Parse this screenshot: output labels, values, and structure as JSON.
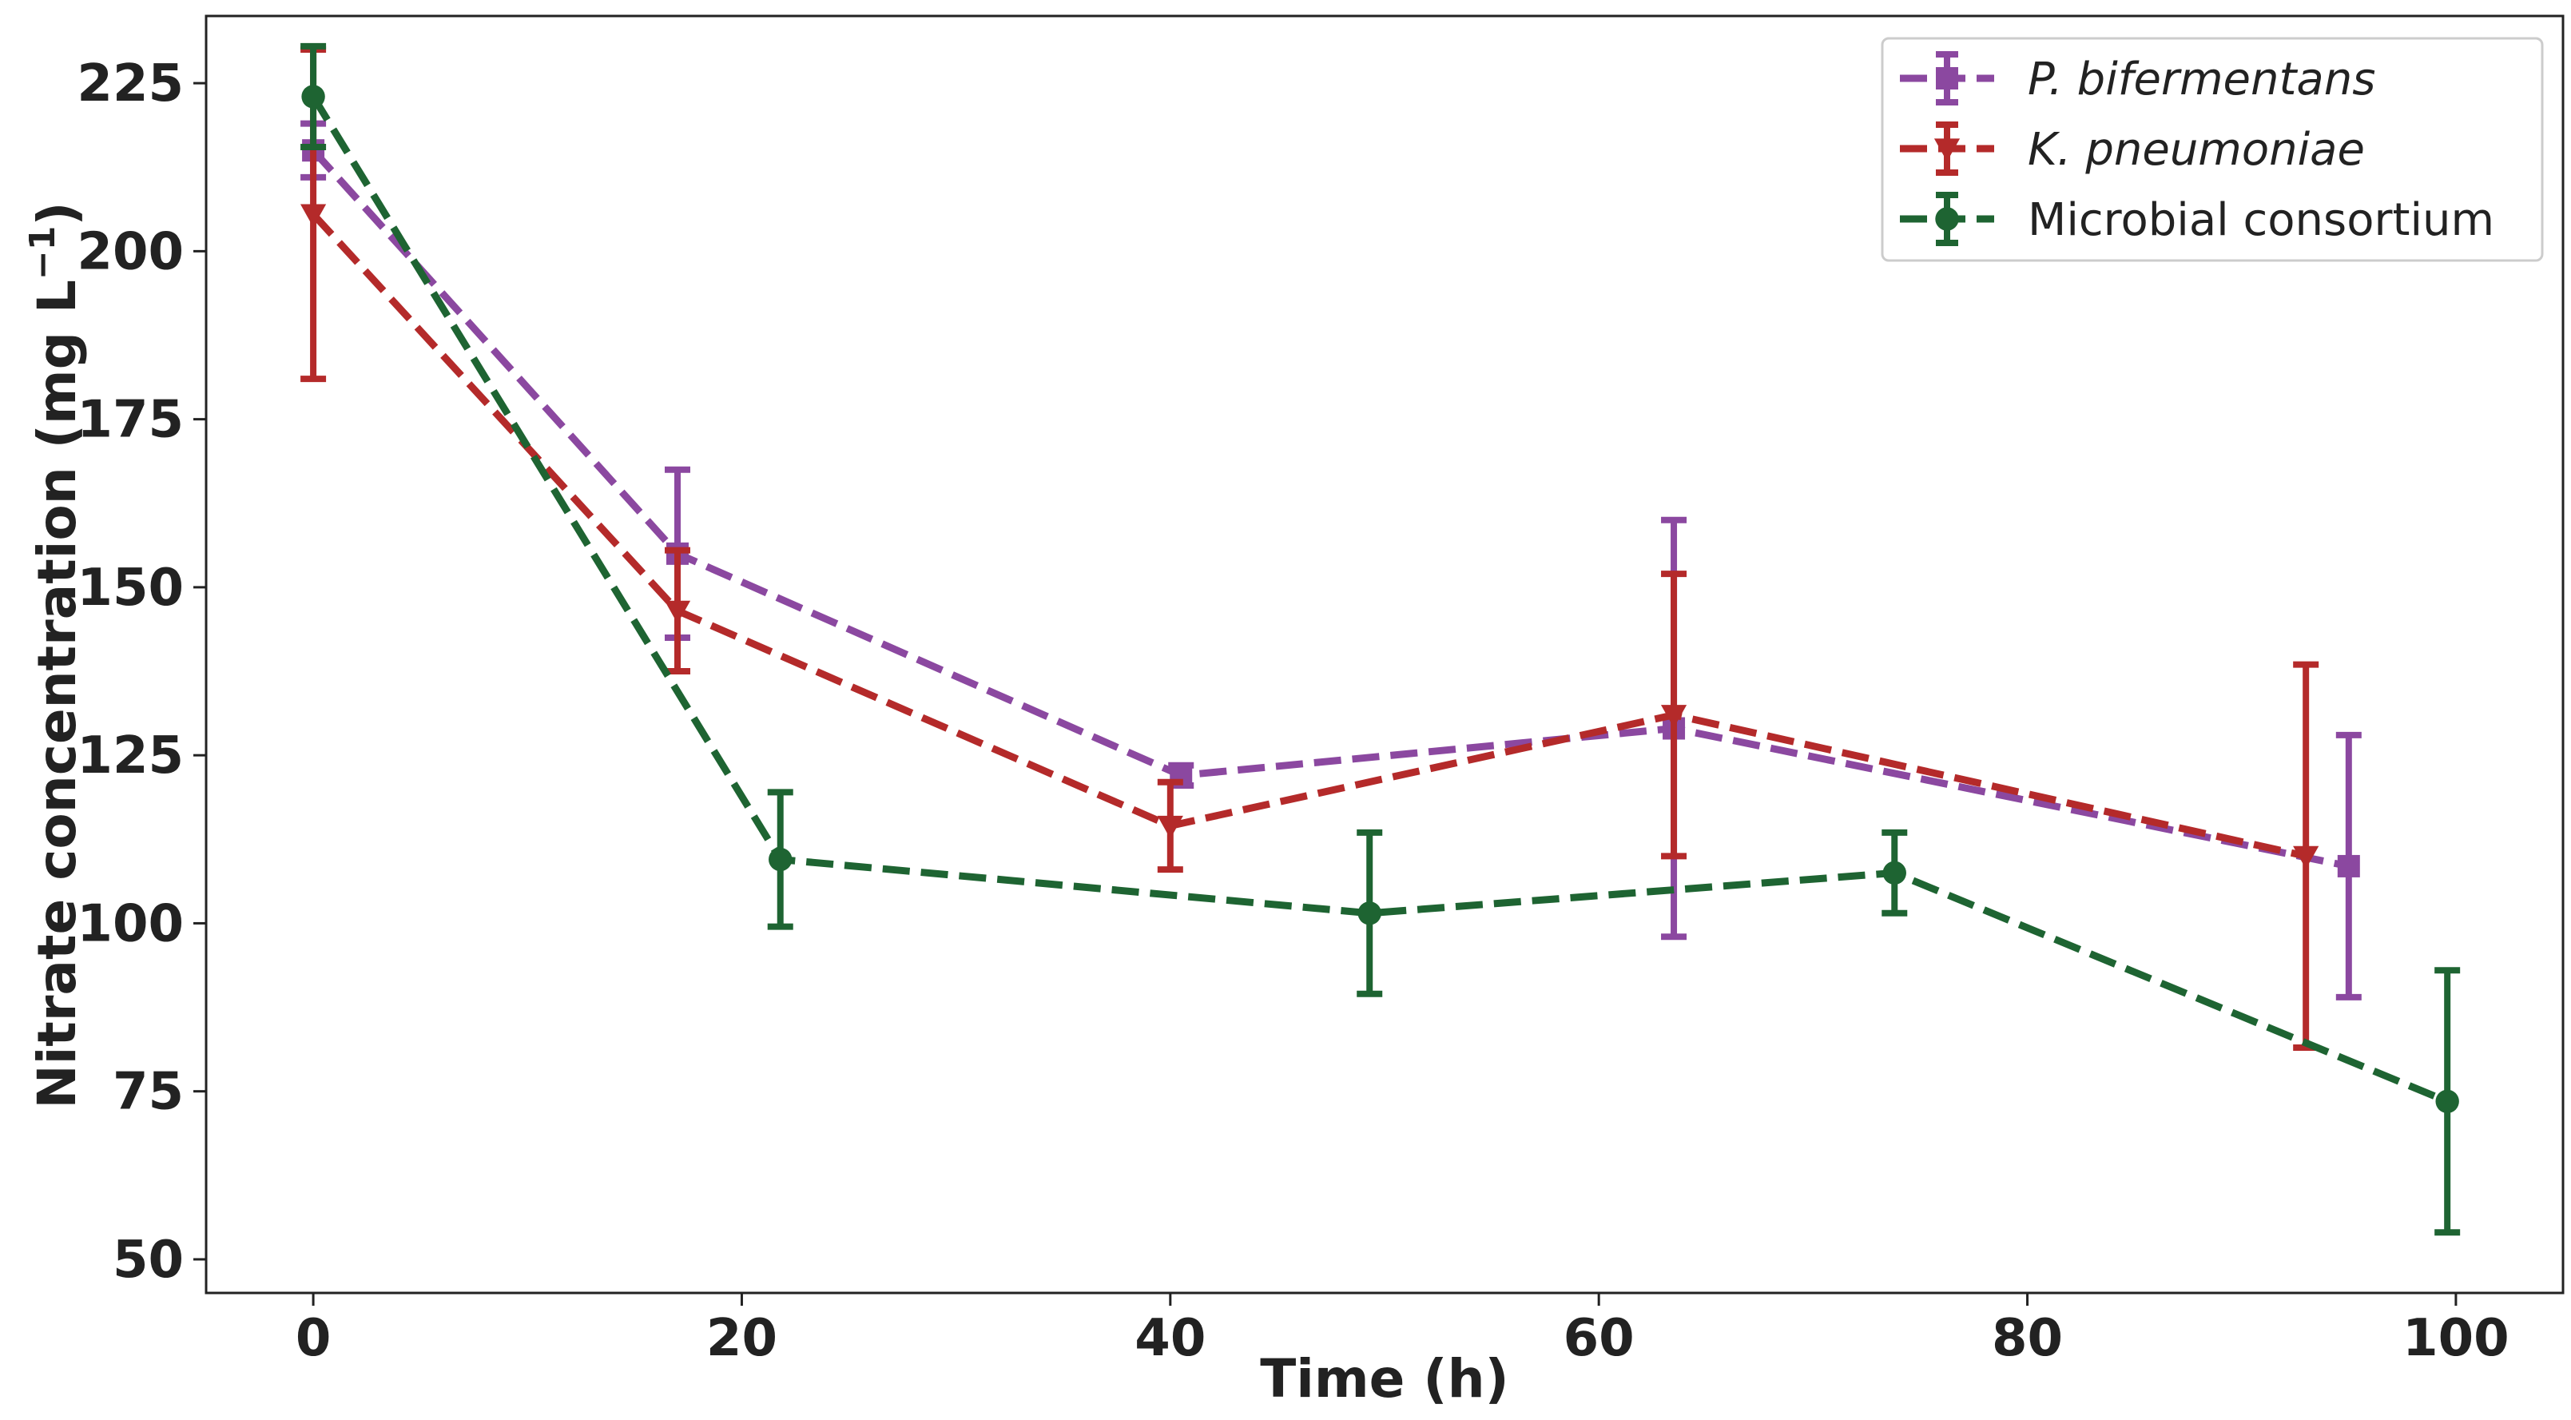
{
  "chart_data": {
    "type": "line",
    "title": "",
    "xlabel": "Time (h)",
    "ylabel": "Nitrate concentration (mg L",
    "ylabel_superscript": "−1",
    "ylabel_suffix": ")",
    "xlim": [
      -5,
      105
    ],
    "ylim": [
      45,
      235
    ],
    "xticks": [
      0,
      20,
      40,
      60,
      80,
      100
    ],
    "yticks": [
      50,
      75,
      100,
      125,
      150,
      175,
      200,
      225
    ],
    "legend_position": "top-right",
    "series": [
      {
        "name": "P. bifermentans",
        "italic": true,
        "color": "#8B48A0",
        "marker": "square",
        "linestyle": "dashed",
        "x": [
          0,
          17,
          40.5,
          63.5,
          95
        ],
        "y": [
          215,
          155,
          122,
          129,
          108.5
        ],
        "yerr": [
          4,
          12.5,
          1.5,
          31,
          19.5
        ]
      },
      {
        "name": "K. pneumoniae",
        "italic": true,
        "color": "#B42A2A",
        "marker": "triangle-down",
        "linestyle": "dashed",
        "x": [
          0,
          17,
          40,
          63.5,
          93
        ],
        "y": [
          205.5,
          146.5,
          114.5,
          131,
          110
        ],
        "yerr": [
          24.5,
          9,
          6.5,
          21,
          28.5
        ]
      },
      {
        "name": "Microbial consortium",
        "italic": false,
        "color": "#1E6432",
        "marker": "circle",
        "linestyle": "dashed",
        "x": [
          0,
          21.8,
          49.3,
          73.8,
          99.6
        ],
        "y": [
          223,
          109.5,
          101.5,
          107.5,
          73.5
        ],
        "yerr": [
          7.5,
          10,
          12,
          6,
          19.5
        ]
      }
    ]
  }
}
